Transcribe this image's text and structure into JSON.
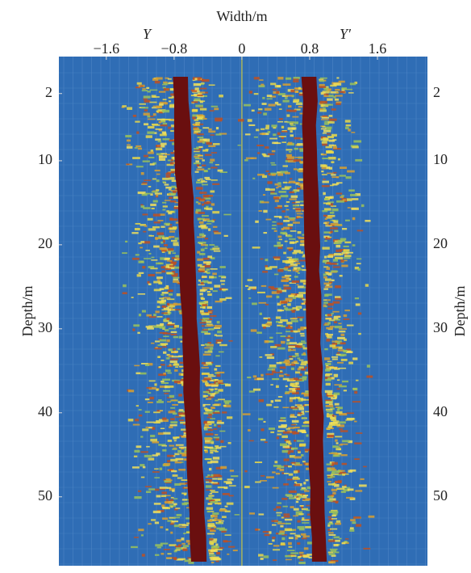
{
  "chart_data": {
    "type": "image",
    "x_label": "Width/m",
    "y_label": "Depth/m",
    "annotations": [
      "Y",
      "Y′"
    ],
    "xlim": [
      -2.16,
      2.19
    ],
    "xticks": [
      {
        "value": -1.6,
        "label": "−1.6"
      },
      {
        "value": -0.8,
        "label": "−0.8"
      },
      0,
      0.8,
      1.6
    ],
    "ylim": [
      -2.4,
      58.2
    ],
    "yticks": [
      2,
      10,
      20,
      30,
      40,
      50
    ],
    "y_inverted": true
  }
}
